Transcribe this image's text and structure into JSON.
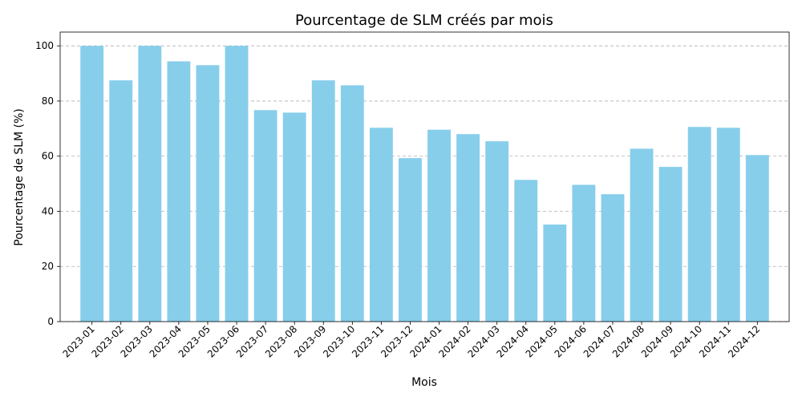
{
  "chart_data": {
    "type": "bar",
    "title": "Pourcentage de SLM créés par mois",
    "xlabel": "Mois",
    "ylabel": "Pourcentage de SLM (%)",
    "ylim": [
      0,
      105
    ],
    "yticks": [
      0,
      20,
      40,
      60,
      80,
      100
    ],
    "grid": "horizontal dashed",
    "bar_color": "#87CEEB",
    "categories": [
      "2023-01",
      "2023-02",
      "2023-03",
      "2023-04",
      "2023-05",
      "2023-06",
      "2023-07",
      "2023-08",
      "2023-09",
      "2023-10",
      "2023-11",
      "2023-12",
      "2024-01",
      "2024-02",
      "2024-03",
      "2024-04",
      "2024-05",
      "2024-06",
      "2024-07",
      "2024-08",
      "2024-09",
      "2024-10",
      "2024-11",
      "2024-12"
    ],
    "values": [
      100,
      87.5,
      100,
      94.4,
      93.0,
      100,
      76.7,
      75.8,
      87.5,
      85.7,
      70.3,
      59.3,
      69.6,
      68.0,
      65.4,
      51.4,
      35.2,
      49.6,
      46.2,
      62.7,
      56.1,
      70.6,
      70.3,
      60.4
    ]
  }
}
